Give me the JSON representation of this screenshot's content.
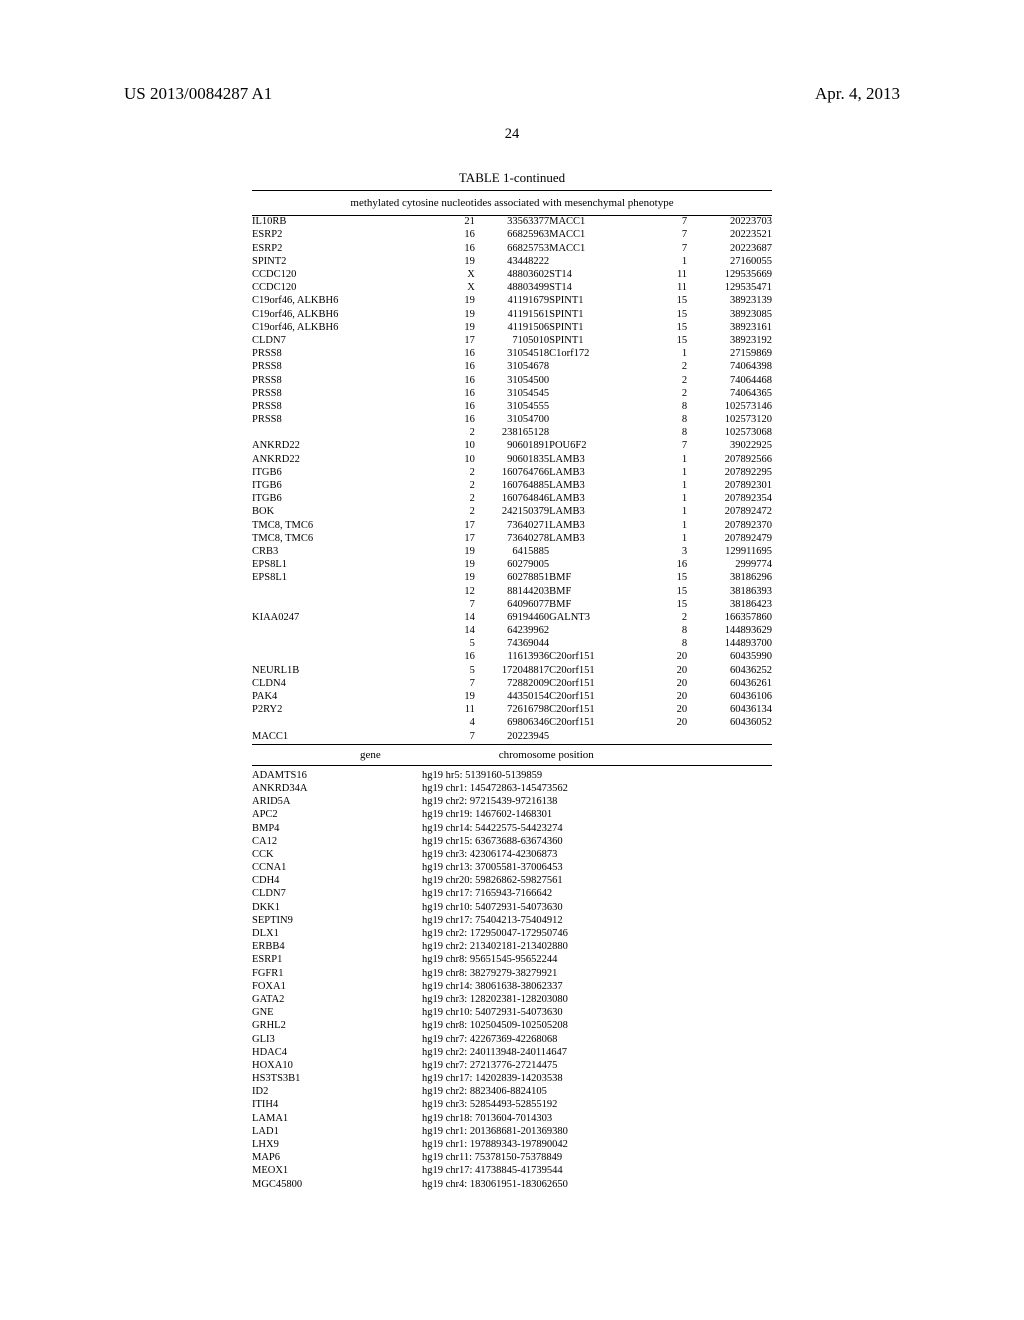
{
  "header": {
    "left": "US 2013/0084287 A1",
    "right": "Apr. 4, 2013"
  },
  "page_number": "24",
  "table_title": "TABLE 1-continued",
  "table_caption": "methylated cytosine nucleotides associated with mesenchymal phenotype",
  "table1_rows": [
    {
      "g1": "IL10RB",
      "c1": "21",
      "p1": "33563377",
      "g2": "MACC1",
      "c2": "7",
      "p2": "20223703"
    },
    {
      "g1": "ESRP2",
      "c1": "16",
      "p1": "66825963",
      "g2": "MACC1",
      "c2": "7",
      "p2": "20223521"
    },
    {
      "g1": "ESRP2",
      "c1": "16",
      "p1": "66825753",
      "g2": "MACC1",
      "c2": "7",
      "p2": "20223687"
    },
    {
      "g1": "SPINT2",
      "c1": "19",
      "p1": "43448222",
      "g2": "",
      "c2": "1",
      "p2": "27160055"
    },
    {
      "g1": "CCDC120",
      "c1": "X",
      "p1": "48803602",
      "g2": "ST14",
      "c2": "11",
      "p2": "129535669"
    },
    {
      "g1": "CCDC120",
      "c1": "X",
      "p1": "48803499",
      "g2": "ST14",
      "c2": "11",
      "p2": "129535471"
    },
    {
      "g1": "C19orf46, ALKBH6",
      "c1": "19",
      "p1": "41191679",
      "g2": "SPINT1",
      "c2": "15",
      "p2": "38923139"
    },
    {
      "g1": "C19orf46, ALKBH6",
      "c1": "19",
      "p1": "41191561",
      "g2": "SPINT1",
      "c2": "15",
      "p2": "38923085"
    },
    {
      "g1": "C19orf46, ALKBH6",
      "c1": "19",
      "p1": "41191506",
      "g2": "SPINT1",
      "c2": "15",
      "p2": "38923161"
    },
    {
      "g1": "CLDN7",
      "c1": "17",
      "p1": "7105010",
      "g2": "SPINT1",
      "c2": "15",
      "p2": "38923192"
    },
    {
      "g1": "PRSS8",
      "c1": "16",
      "p1": "31054518",
      "g2": "C1orf172",
      "c2": "1",
      "p2": "27159869"
    },
    {
      "g1": "PRSS8",
      "c1": "16",
      "p1": "31054678",
      "g2": "",
      "c2": "2",
      "p2": "74064398"
    },
    {
      "g1": "PRSS8",
      "c1": "16",
      "p1": "31054500",
      "g2": "",
      "c2": "2",
      "p2": "74064468"
    },
    {
      "g1": "PRSS8",
      "c1": "16",
      "p1": "31054545",
      "g2": "",
      "c2": "2",
      "p2": "74064365"
    },
    {
      "g1": "PRSS8",
      "c1": "16",
      "p1": "31054555",
      "g2": "",
      "c2": "8",
      "p2": "102573146"
    },
    {
      "g1": "PRSS8",
      "c1": "16",
      "p1": "31054700",
      "g2": "",
      "c2": "8",
      "p2": "102573120"
    },
    {
      "g1": "",
      "c1": "2",
      "p1": "238165128",
      "g2": "",
      "c2": "8",
      "p2": "102573068"
    },
    {
      "g1": "ANKRD22",
      "c1": "10",
      "p1": "90601891",
      "g2": "POU6F2",
      "c2": "7",
      "p2": "39022925"
    },
    {
      "g1": "ANKRD22",
      "c1": "10",
      "p1": "90601835",
      "g2": "LAMB3",
      "c2": "1",
      "p2": "207892566"
    },
    {
      "g1": "ITGB6",
      "c1": "2",
      "p1": "160764766",
      "g2": "LAMB3",
      "c2": "1",
      "p2": "207892295"
    },
    {
      "g1": "ITGB6",
      "c1": "2",
      "p1": "160764885",
      "g2": "LAMB3",
      "c2": "1",
      "p2": "207892301"
    },
    {
      "g1": "ITGB6",
      "c1": "2",
      "p1": "160764846",
      "g2": "LAMB3",
      "c2": "1",
      "p2": "207892354"
    },
    {
      "g1": "BOK",
      "c1": "2",
      "p1": "242150379",
      "g2": "LAMB3",
      "c2": "1",
      "p2": "207892472"
    },
    {
      "g1": "TMC8, TMC6",
      "c1": "17",
      "p1": "73640271",
      "g2": "LAMB3",
      "c2": "1",
      "p2": "207892370"
    },
    {
      "g1": "TMC8, TMC6",
      "c1": "17",
      "p1": "73640278",
      "g2": "LAMB3",
      "c2": "1",
      "p2": "207892479"
    },
    {
      "g1": "CRB3",
      "c1": "19",
      "p1": "6415885",
      "g2": "",
      "c2": "3",
      "p2": "129911695"
    },
    {
      "g1": "EPS8L1",
      "c1": "19",
      "p1": "60279005",
      "g2": "",
      "c2": "16",
      "p2": "2999774"
    },
    {
      "g1": "EPS8L1",
      "c1": "19",
      "p1": "60278851",
      "g2": "BMF",
      "c2": "15",
      "p2": "38186296"
    },
    {
      "g1": "",
      "c1": "12",
      "p1": "88144203",
      "g2": "BMF",
      "c2": "15",
      "p2": "38186393"
    },
    {
      "g1": "",
      "c1": "7",
      "p1": "64096077",
      "g2": "BMF",
      "c2": "15",
      "p2": "38186423"
    },
    {
      "g1": "KIAA0247",
      "c1": "14",
      "p1": "69194460",
      "g2": "GALNT3",
      "c2": "2",
      "p2": "166357860"
    },
    {
      "g1": "",
      "c1": "14",
      "p1": "64239962",
      "g2": "",
      "c2": "8",
      "p2": "144893629"
    },
    {
      "g1": "",
      "c1": "5",
      "p1": "74369044",
      "g2": "",
      "c2": "8",
      "p2": "144893700"
    },
    {
      "g1": "",
      "c1": "16",
      "p1": "11613936",
      "g2": "C20orf151",
      "c2": "20",
      "p2": "60435990"
    },
    {
      "g1": "NEURL1B",
      "c1": "5",
      "p1": "172048817",
      "g2": "C20orf151",
      "c2": "20",
      "p2": "60436252"
    },
    {
      "g1": "CLDN4",
      "c1": "7",
      "p1": "72882009",
      "g2": "C20orf151",
      "c2": "20",
      "p2": "60436261"
    },
    {
      "g1": "PAK4",
      "c1": "19",
      "p1": "44350154",
      "g2": "C20orf151",
      "c2": "20",
      "p2": "60436106"
    },
    {
      "g1": "P2RY2",
      "c1": "11",
      "p1": "72616798",
      "g2": "C20orf151",
      "c2": "20",
      "p2": "60436134"
    },
    {
      "g1": "",
      "c1": "4",
      "p1": "69806346",
      "g2": "C20orf151",
      "c2": "20",
      "p2": "60436052"
    },
    {
      "g1": "MACC1",
      "c1": "7",
      "p1": "20223945",
      "g2": "",
      "c2": "",
      "p2": ""
    }
  ],
  "subheader": {
    "gene": "gene",
    "position": "chromosome position"
  },
  "table2_rows": [
    {
      "gene": "ADAMTS16",
      "pos": "hg19 hr5: 5139160-5139859"
    },
    {
      "gene": "ANKRD34A",
      "pos": "hg19 chr1: 145472863-145473562"
    },
    {
      "gene": "ARID5A",
      "pos": "hg19 chr2: 97215439-97216138"
    },
    {
      "gene": "APC2",
      "pos": "hg19 chr19: 1467602-1468301"
    },
    {
      "gene": "BMP4",
      "pos": "hg19 chr14: 54422575-54423274"
    },
    {
      "gene": "CA12",
      "pos": "hg19 chr15: 63673688-63674360"
    },
    {
      "gene": "CCK",
      "pos": "hg19 chr3: 42306174-42306873"
    },
    {
      "gene": "CCNA1",
      "pos": "hg19 chr13: 37005581-37006453"
    },
    {
      "gene": "CDH4",
      "pos": "hg19 chr20: 59826862-59827561"
    },
    {
      "gene": "CLDN7",
      "pos": "hg19 chr17: 7165943-7166642"
    },
    {
      "gene": "DKK1",
      "pos": "hg19 chr10: 54072931-54073630"
    },
    {
      "gene": "SEPTIN9",
      "pos": "hg19 chr17: 75404213-75404912"
    },
    {
      "gene": "DLX1",
      "pos": "hg19 chr2: 172950047-172950746"
    },
    {
      "gene": "ERBB4",
      "pos": "hg19 chr2: 213402181-213402880"
    },
    {
      "gene": "ESRP1",
      "pos": "hg19 chr8: 95651545-95652244"
    },
    {
      "gene": "FGFR1",
      "pos": "hg19 chr8: 38279279-38279921"
    },
    {
      "gene": "FOXA1",
      "pos": "hg19 chr14: 38061638-38062337"
    },
    {
      "gene": "GATA2",
      "pos": "hg19 chr3: 128202381-128203080"
    },
    {
      "gene": "GNE",
      "pos": "hg19 chr10: 54072931-54073630"
    },
    {
      "gene": "GRHL2",
      "pos": "hg19 chr8: 102504509-102505208"
    },
    {
      "gene": "GLI3",
      "pos": "hg19 chr7: 42267369-42268068"
    },
    {
      "gene": "HDAC4",
      "pos": "hg19 chr2: 240113948-240114647"
    },
    {
      "gene": "HOXA10",
      "pos": "hg19 chr7: 27213776-27214475"
    },
    {
      "gene": "HS3TS3B1",
      "pos": "hg19 chr17: 14202839-14203538"
    },
    {
      "gene": "ID2",
      "pos": "hg19 chr2: 8823406-8824105"
    },
    {
      "gene": "ITIH4",
      "pos": "hg19 chr3: 52854493-52855192"
    },
    {
      "gene": "LAMA1",
      "pos": "hg19 chr18: 7013604-7014303"
    },
    {
      "gene": "LAD1",
      "pos": "hg19 chr1: 201368681-201369380"
    },
    {
      "gene": "LHX9",
      "pos": "hg19 chr1: 197889343-197890042"
    },
    {
      "gene": "MAP6",
      "pos": "hg19 chr11: 75378150-75378849"
    },
    {
      "gene": "MEOX1",
      "pos": "hg19 chr17: 41738845-41739544"
    },
    {
      "gene": "MGC45800",
      "pos": "hg19 chr4: 183061951-183062650"
    }
  ]
}
